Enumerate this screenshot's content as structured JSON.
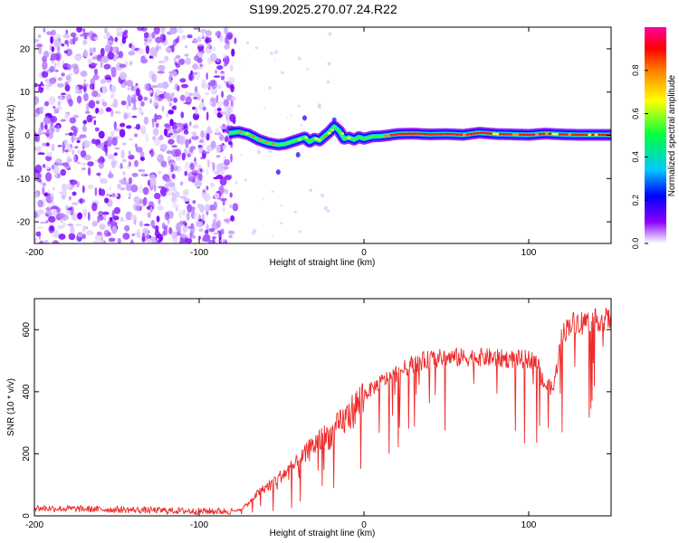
{
  "title": "S199.2025.270.07.24.R22",
  "chart_data": [
    {
      "type": "heatmap",
      "xlabel": "Height of straight line (km)",
      "ylabel": "Frequency (Hz)",
      "xlim": [
        -200,
        150
      ],
      "ylim": [
        -25,
        25
      ],
      "xticks": [
        -200,
        -100,
        0,
        100
      ],
      "yticks": [
        -20,
        -10,
        0,
        10,
        20
      ],
      "xtick_labels": [
        "-200",
        "-100",
        "0",
        "100"
      ],
      "ytick_labels": [
        "-20",
        "-10",
        "0",
        "10",
        "20"
      ],
      "noise_region_x": [
        -200,
        -80
      ],
      "signal_start_x": -82,
      "ridge": {
        "x": [
          -82,
          -76,
          -70,
          -64,
          -58,
          -52,
          -48,
          -44,
          -40,
          -36,
          -33,
          -30,
          -27,
          -24,
          -21,
          -18,
          -15,
          -12,
          -9,
          -6,
          -3,
          0,
          5,
          10,
          15,
          20,
          30,
          40,
          50,
          60,
          70,
          80,
          90,
          100,
          110,
          120,
          130,
          140,
          150
        ],
        "freq": [
          0.5,
          0.8,
          0.2,
          -1.0,
          -1.8,
          -2.2,
          -2.0,
          -1.5,
          -1.0,
          -0.5,
          -1.5,
          -0.8,
          -1.2,
          -0.2,
          0.8,
          2.0,
          1.0,
          -0.8,
          -0.5,
          -1.0,
          -0.4,
          -0.8,
          -0.3,
          -0.2,
          0.0,
          0.3,
          0.4,
          0.2,
          0.3,
          0.1,
          0.6,
          0.3,
          0.2,
          0.1,
          0.4,
          0.2,
          0.1,
          0.1,
          0.1
        ]
      }
    },
    {
      "type": "line",
      "xlabel": "Height of straight line (km)",
      "ylabel": "SNR (10 * v/v)",
      "xlim": [
        -200,
        150
      ],
      "ylim": [
        0,
        700
      ],
      "xticks": [
        -200,
        -100,
        0,
        100
      ],
      "yticks": [
        0,
        200,
        400,
        600
      ],
      "xtick_labels": [
        "-200",
        "-100",
        "0",
        "100"
      ],
      "ytick_labels": [
        "0",
        "200",
        "400",
        "600"
      ],
      "series": [
        {
          "name": "SNR",
          "color": "#ee2a2a",
          "x": [
            -200,
            -150,
            -100,
            -80,
            -75,
            -70,
            -65,
            -60,
            -55,
            -50,
            -45,
            -40,
            -35,
            -30,
            -25,
            -20,
            -15,
            -10,
            -5,
            0,
            10,
            20,
            30,
            40,
            50,
            60,
            70,
            80,
            90,
            100,
            105,
            110,
            115,
            120,
            125,
            130,
            140,
            150
          ],
          "values": [
            25,
            20,
            15,
            15,
            20,
            40,
            70,
            90,
            110,
            130,
            150,
            170,
            200,
            230,
            250,
            260,
            290,
            320,
            350,
            390,
            430,
            460,
            490,
            505,
            510,
            510,
            512,
            508,
            505,
            505,
            500,
            420,
            410,
            580,
            620,
            625,
            630,
            635
          ]
        }
      ]
    }
  ],
  "colorbar": {
    "label": "Normalized spectral amplitude",
    "range": [
      0.0,
      1.0
    ],
    "ticks": [
      "0.0",
      "0.2",
      "0.4",
      "0.6",
      "0.8"
    ],
    "colors": [
      "#ffffff",
      "#8a00ff",
      "#0000ff",
      "#00c8ff",
      "#00ff40",
      "#ffff00",
      "#ff8000",
      "#ff0000",
      "#ff00a0"
    ]
  }
}
